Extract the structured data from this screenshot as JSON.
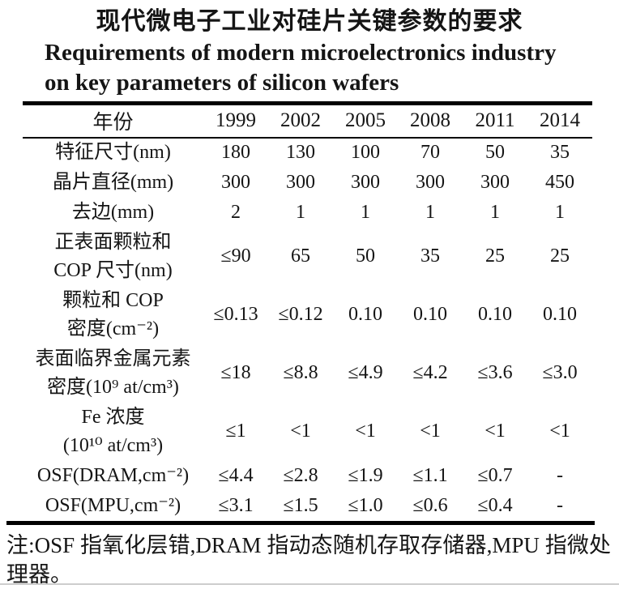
{
  "title": {
    "zh": "现代微电子工业对硅片关键参数的要求",
    "en_line1": "Requirements of modern microelectronics industry",
    "en_line2": "on key parameters of silicon wafers"
  },
  "table": {
    "header": {
      "label": "年份",
      "years": [
        "1999",
        "2002",
        "2005",
        "2008",
        "2011",
        "2014"
      ]
    },
    "rows": [
      {
        "label_lines": [
          "特征尺寸(nm)"
        ],
        "values": [
          "180",
          "130",
          "100",
          "70",
          "50",
          "35"
        ]
      },
      {
        "label_lines": [
          "晶片直径(mm)"
        ],
        "values": [
          "300",
          "300",
          "300",
          "300",
          "300",
          "450"
        ]
      },
      {
        "label_lines": [
          "去边(mm)"
        ],
        "values": [
          "2",
          "1",
          "1",
          "1",
          "1",
          "1"
        ]
      },
      {
        "label_lines": [
          "正表面颗粒和",
          "COP 尺寸(nm)"
        ],
        "values": [
          "≤90",
          "65",
          "50",
          "35",
          "25",
          "25"
        ]
      },
      {
        "label_lines": [
          "颗粒和 COP",
          "密度(cm⁻²)"
        ],
        "values": [
          "≤0.13",
          "≤0.12",
          "0.10",
          "0.10",
          "0.10",
          "0.10"
        ]
      },
      {
        "label_lines": [
          "表面临界金属元素",
          "密度(10⁹ at/cm³)"
        ],
        "values": [
          "≤18",
          "≤8.8",
          "≤4.9",
          "≤4.2",
          "≤3.6",
          "≤3.0"
        ]
      },
      {
        "label_lines": [
          "Fe 浓度",
          "(10¹⁰ at/cm³)"
        ],
        "values": [
          "≤1",
          "<1",
          "<1",
          "<1",
          "<1",
          "<1"
        ]
      },
      {
        "label_lines": [
          "OSF(DRAM,cm⁻²)"
        ],
        "values": [
          "≤4.4",
          "≤2.8",
          "≤1.9",
          "≤1.1",
          "≤0.7",
          "-"
        ]
      },
      {
        "label_lines": [
          "OSF(MPU,cm⁻²)"
        ],
        "values": [
          "≤3.1",
          "≤1.5",
          "≤1.0",
          "≤0.6",
          "≤0.4",
          "-"
        ]
      }
    ]
  },
  "footnote": "注:OSF 指氧化层错,DRAM 指动态随机存取存储器,MPU 指微处理器。",
  "colors": {
    "text": "#151515",
    "rule": "#000000",
    "scan_line": "#cdcdcd",
    "background": "#ffffff"
  }
}
